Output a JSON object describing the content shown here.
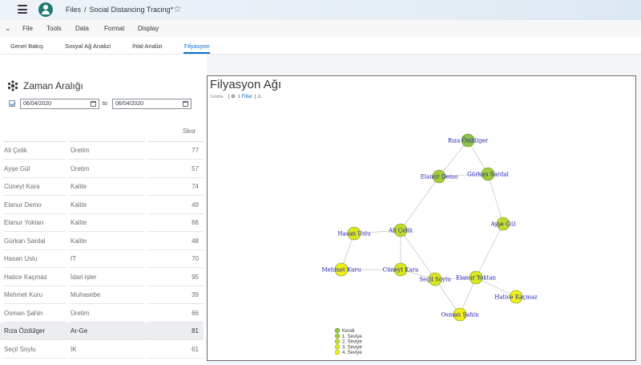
{
  "shell": {
    "breadcrumb_root": "Files",
    "breadcrumb_sep": "/",
    "doc_title": "Social Distancing Tracing*",
    "star_icon": "star-icon"
  },
  "menubar": {
    "items": [
      "File",
      "Tools",
      "Data",
      "Format",
      "Display"
    ]
  },
  "tabs": {
    "items": [
      "Genel Bakış",
      "Sosyal Ağ Analizi",
      "İhlal Analizi",
      "Filyasyon"
    ],
    "active": "Filyasyon"
  },
  "date_range": {
    "title": "Zaman Aralığı",
    "from": "06/04/2020",
    "to_label": "to",
    "to": "06/04/2020",
    "enabled": true
  },
  "table": {
    "score_header": "Skor",
    "rows": [
      {
        "name": "Ali Çelik",
        "dept": "Üretim",
        "score": "77"
      },
      {
        "name": "Ayşe Gül",
        "dept": "Üretim",
        "score": "57"
      },
      {
        "name": "Cüneyt Kara",
        "dept": "Kalite",
        "score": "74"
      },
      {
        "name": "Elanur Demo",
        "dept": "Kalite",
        "score": "49"
      },
      {
        "name": "Elanur Yoktan",
        "dept": "Kalite",
        "score": "66"
      },
      {
        "name": "Gürkan Sardal",
        "dept": "Kalite",
        "score": "48"
      },
      {
        "name": "Hasan Uslu",
        "dept": "IT",
        "score": "70"
      },
      {
        "name": "Hatice Kaçmaz",
        "dept": "İdari işler",
        "score": "95"
      },
      {
        "name": "Mehmet Kuru",
        "dept": "Muhasebe",
        "score": "39"
      },
      {
        "name": "Osman Şahin",
        "dept": "Üretim",
        "score": "66"
      },
      {
        "name": "Rıza Özdülger",
        "dept": "Ar-Ge",
        "score": "81"
      },
      {
        "name": "Seçil Soylu",
        "dept": "IK",
        "score": "61"
      }
    ],
    "selected_index": 10
  },
  "chart": {
    "title": "Filyasyon Ağı",
    "subtitle": "Subtitle",
    "filter_label": "1 Filter",
    "filter_icon": "filter-icon",
    "warning_icon": "warning-icon"
  },
  "chart_data": {
    "type": "network",
    "title": "Filyasyon Ağı",
    "nodes": [
      {
        "id": "Rıza Özdülger",
        "level": "Kendi"
      },
      {
        "id": "Elanur Demo",
        "level": "1. Seviye"
      },
      {
        "id": "Gürkan Sardal",
        "level": "1. Seviye"
      },
      {
        "id": "Ali Çelik",
        "level": "2. Seviye"
      },
      {
        "id": "Ayşe Gül",
        "level": "2. Seviye"
      },
      {
        "id": "Hasan Uslu",
        "level": "3. Seviye"
      },
      {
        "id": "Cüneyt Kara",
        "level": "3. Seviye"
      },
      {
        "id": "Seçil Soylu",
        "level": "3. Seviye"
      },
      {
        "id": "Elanur Yoktan",
        "level": "3. Seviye"
      },
      {
        "id": "Mehmet Kuru",
        "level": "4. Seviye"
      },
      {
        "id": "Osman Şahin",
        "level": "4. Seviye"
      },
      {
        "id": "Hatice Kaçmaz",
        "level": "4. Seviye"
      }
    ],
    "edges": [
      [
        "Rıza Özdülger",
        "Elanur Demo"
      ],
      [
        "Rıza Özdülger",
        "Gürkan Sardal"
      ],
      [
        "Elanur Demo",
        "Gürkan Sardal"
      ],
      [
        "Elanur Demo",
        "Ali Çelik"
      ],
      [
        "Gürkan Sardal",
        "Ayşe Gül"
      ],
      [
        "Ali Çelik",
        "Hasan Uslu"
      ],
      [
        "Ali Çelik",
        "Cüneyt Kara"
      ],
      [
        "Ali Çelik",
        "Seçil Soylu"
      ],
      [
        "Ayşe Gül",
        "Elanur Yoktan"
      ],
      [
        "Hasan Uslu",
        "Mehmet Kuru"
      ],
      [
        "Mehmet Kuru",
        "Cüneyt Kara"
      ],
      [
        "Cüneyt Kara",
        "Seçil Soylu"
      ],
      [
        "Seçil Soylu",
        "Elanur Yoktan"
      ],
      [
        "Seçil Soylu",
        "Osman Şahin"
      ],
      [
        "Elanur Yoktan",
        "Osman Şahin"
      ],
      [
        "Elanur Yoktan",
        "Hatice Kaçmaz"
      ]
    ],
    "legend": [
      {
        "label": "Kendi",
        "color": "#8cc34a"
      },
      {
        "label": "1. Seviye",
        "color": "#a3cd3b"
      },
      {
        "label": "2. Seviye",
        "color": "#c2dc2c"
      },
      {
        "label": "3. Seviye",
        "color": "#dbe61c"
      },
      {
        "label": "4. Seviye",
        "color": "#f0f018"
      }
    ]
  }
}
